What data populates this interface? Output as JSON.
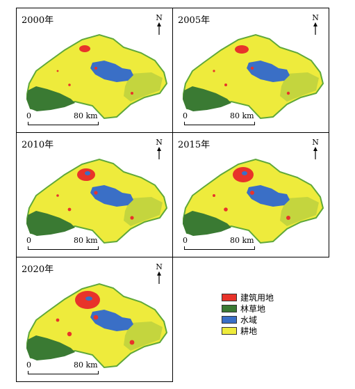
{
  "panels": [
    {
      "year": "2000年"
    },
    {
      "year": "2005年"
    },
    {
      "year": "2010年"
    },
    {
      "year": "2015年"
    },
    {
      "year": "2020年"
    }
  ],
  "north_label": "N",
  "scale": {
    "start": "0",
    "end": "80 km"
  },
  "legend": [
    {
      "label": "建筑用地",
      "color": "#e8332a"
    },
    {
      "label": "林草地",
      "color": "#3a7a33"
    },
    {
      "label": "水域",
      "color": "#3a6fc6"
    },
    {
      "label": "耕地",
      "color": "#eeeb3c"
    }
  ],
  "colors": {
    "outline": "#5fa83a",
    "urban": "#e8332a",
    "forest": "#3a7a33",
    "water": "#3a6fc6",
    "cropland": "#eeeb3c"
  }
}
